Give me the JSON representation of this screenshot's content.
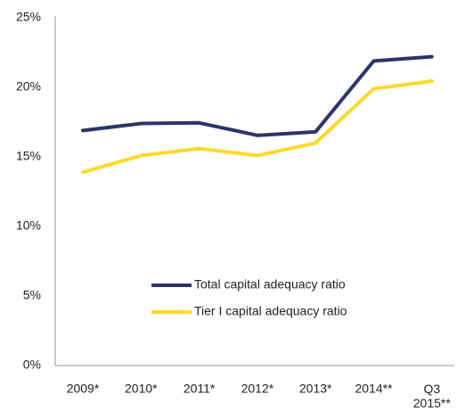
{
  "chart_data": {
    "type": "line",
    "categories": [
      "2009*",
      "2010*",
      "2011*",
      "2012*",
      "2013*",
      "2014**",
      "Q3\n2015**"
    ],
    "series": [
      {
        "name": "Total capital adequacy ratio",
        "color": "#2e3468",
        "values": [
          16.9,
          17.4,
          17.45,
          16.55,
          16.8,
          21.9,
          22.2
        ]
      },
      {
        "name": "Tier I capital adequacy ratio",
        "color": "#fcd92b",
        "values": [
          13.9,
          15.1,
          15.6,
          15.1,
          16.0,
          19.9,
          20.45
        ]
      }
    ],
    "ylim": [
      0,
      25
    ],
    "yticks": [
      {
        "value": 0,
        "label": "0%"
      },
      {
        "value": 5,
        "label": "5%"
      },
      {
        "value": 10,
        "label": "10%"
      },
      {
        "value": 15,
        "label": "15%"
      },
      {
        "value": 20,
        "label": "20%"
      },
      {
        "value": 25,
        "label": "25%"
      }
    ],
    "grid": false
  }
}
